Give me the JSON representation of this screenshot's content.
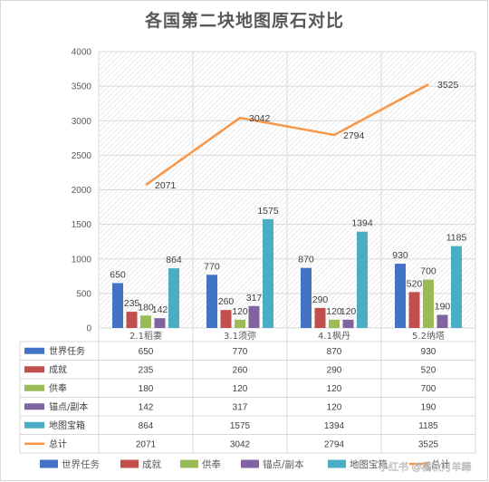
{
  "chart_data": {
    "type": "bar",
    "title": "各国第二块地图原石对比",
    "categories": [
      "2.1稻妻",
      "3.1须弥",
      "4.1枫丹",
      "5.2纳塔"
    ],
    "ylim": [
      0,
      4000
    ],
    "yticks": [
      0,
      500,
      1000,
      1500,
      2000,
      2500,
      3000,
      3500,
      4000
    ],
    "grid": true,
    "legend_position": "bottom",
    "data_table": true,
    "series": [
      {
        "name": "世界任务",
        "type": "bar",
        "color": "#4472c4",
        "values": [
          650,
          770,
          870,
          930
        ]
      },
      {
        "name": "成就",
        "type": "bar",
        "color": "#c0504d",
        "values": [
          235,
          260,
          290,
          520
        ]
      },
      {
        "name": "供奉",
        "type": "bar",
        "color": "#9bbb59",
        "values": [
          180,
          120,
          120,
          700
        ]
      },
      {
        "name": "锚点/副本",
        "type": "bar",
        "color": "#8064a2",
        "values": [
          142,
          317,
          120,
          190
        ]
      },
      {
        "name": "地图宝箱",
        "type": "bar",
        "color": "#4bacc6",
        "values": [
          864,
          1575,
          1394,
          1185
        ]
      },
      {
        "name": "总计",
        "type": "line",
        "color": "#f79646",
        "values": [
          2071,
          3042,
          2794,
          3525
        ]
      }
    ]
  },
  "watermark": "小红书 @橘秋月羊蹄"
}
